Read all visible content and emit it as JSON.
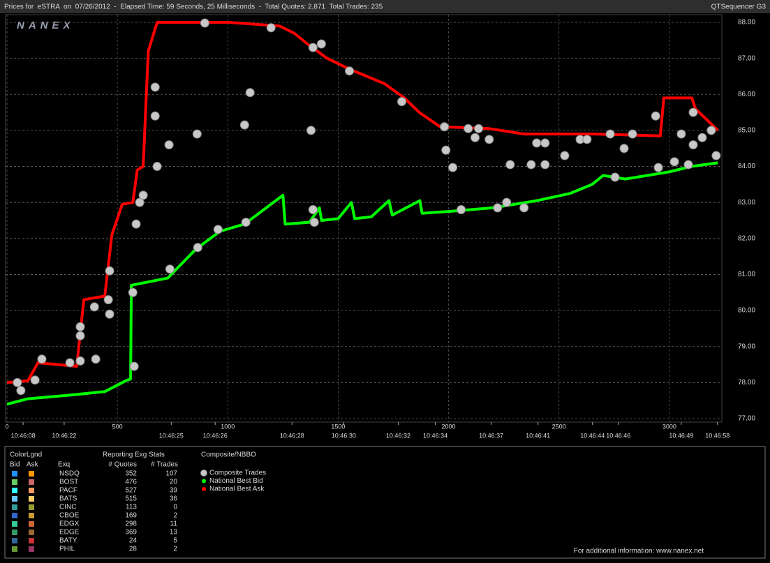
{
  "chart_data": {
    "type": "line",
    "title": "Prices for  eSTRA  on  07/26/2012  -  Elapsed Time: 59 Seconds, 25 Milliseconds  -  Total Quotes: 2,871  Total Trades: 235",
    "subtitle": "QTSequencer G3",
    "logo": "NANEX",
    "xlim": [
      0,
      3225
    ],
    "ylim": [
      77,
      88
    ],
    "grid": true,
    "xticks": [
      0,
      500,
      1000,
      1500,
      2000,
      2500,
      3000
    ],
    "yticks": [
      {
        "value": 77,
        "label": "77.00"
      },
      {
        "value": 78,
        "label": "78.00"
      },
      {
        "value": 79,
        "label": "79.00"
      },
      {
        "value": 80,
        "label": "80.00"
      },
      {
        "value": 81,
        "label": "81.00"
      },
      {
        "value": 82,
        "label": "82.00"
      },
      {
        "value": 83,
        "label": "83.00"
      },
      {
        "value": 84,
        "label": "84.00"
      },
      {
        "value": 85,
        "label": "85.00"
      },
      {
        "value": 86,
        "label": "86.00"
      },
      {
        "value": 87,
        "label": "87.00"
      },
      {
        "value": 88,
        "label": "88.00"
      }
    ],
    "time_ticks": [
      {
        "value": 73,
        "label": "10:46:08"
      },
      {
        "value": 259,
        "label": "10:46:22"
      },
      {
        "value": 744,
        "label": "10:46:25"
      },
      {
        "value": 943,
        "label": "10:46:26"
      },
      {
        "value": 1291,
        "label": "10:46:28"
      },
      {
        "value": 1525,
        "label": "10:46:30"
      },
      {
        "value": 1772,
        "label": "10:46:32"
      },
      {
        "value": 1940,
        "label": "10:46:34"
      },
      {
        "value": 2193,
        "label": "10:46:37"
      },
      {
        "value": 2405,
        "label": "10:46:41"
      },
      {
        "value": 2652,
        "label": "10:46:44"
      },
      {
        "value": 2769,
        "label": "10:46:46"
      },
      {
        "value": 3054,
        "label": "10:46:49"
      },
      {
        "value": 3218,
        "label": "10:46:58"
      }
    ],
    "series": [
      {
        "name": "Composite Trades",
        "type": "scatter",
        "color": "#c8c8c8",
        "x": [
          47,
          63,
          127,
          158,
          285,
          332,
          332,
          332,
          396,
          402,
          459,
          465,
          465,
          570,
          576,
          585,
          601,
          617,
          671,
          671,
          680,
          734,
          738,
          864,
          861,
          896,
          956,
          1076,
          1082,
          1101,
          1196,
          1377,
          1386,
          1386,
          1392,
          1424,
          1551,
          1788,
          1981,
          1988,
          2019,
          2057,
          2089,
          2136,
          2120,
          2184,
          2222,
          2263,
          2279,
          2342,
          2374,
          2399,
          2437,
          2437,
          2526,
          2596,
          2627,
          2732,
          2754,
          2795,
          2833,
          2938,
          2950,
          3023,
          3054,
          3108,
          3108,
          3149,
          3190,
          3212,
          3086
        ],
        "values": [
          78.0,
          77.78,
          78.07,
          78.65,
          78.55,
          78.6,
          79.3,
          79.55,
          80.1,
          78.65,
          80.3,
          79.9,
          81.1,
          80.5,
          78.45,
          82.4,
          83.0,
          83.2,
          86.2,
          85.4,
          84.0,
          84.6,
          81.15,
          81.75,
          84.9,
          87.98,
          82.25,
          85.15,
          82.45,
          86.05,
          87.85,
          85.0,
          87.3,
          82.8,
          82.45,
          87.4,
          86.65,
          85.8,
          85.1,
          84.45,
          83.97,
          82.8,
          85.05,
          85.05,
          84.8,
          84.75,
          82.85,
          83.0,
          84.05,
          82.85,
          84.05,
          84.65,
          84.65,
          84.05,
          84.3,
          84.75,
          84.75,
          84.9,
          83.7,
          84.5,
          84.9,
          85.4,
          83.97,
          84.13,
          84.9,
          84.6,
          85.5,
          84.8,
          85.0,
          84.3,
          84.05
        ]
      },
      {
        "name": "National Best Bid",
        "type": "line",
        "color": "#00ff00",
        "x": [
          0,
          95,
          285,
          443,
          538,
          560,
          563,
          728,
          855,
          965,
          1076,
          1250,
          1260,
          1370,
          1415,
          1425,
          1500,
          1560,
          1575,
          1650,
          1730,
          1745,
          1870,
          1880,
          2000,
          2200,
          2400,
          2550,
          2650,
          2700,
          2800,
          2900,
          3000,
          3100,
          3220
        ],
        "values": [
          77.4,
          77.55,
          77.65,
          77.75,
          78.05,
          78.1,
          80.7,
          80.9,
          81.7,
          82.2,
          82.4,
          83.2,
          82.4,
          82.45,
          82.85,
          82.5,
          82.55,
          83.0,
          82.55,
          82.6,
          83.05,
          82.65,
          83.05,
          82.7,
          82.75,
          82.85,
          83.05,
          83.25,
          83.5,
          83.75,
          83.65,
          83.75,
          83.85,
          84.0,
          84.1
        ]
      },
      {
        "name": "National Best Ask",
        "type": "line",
        "color": "#ff0000",
        "x": [
          0,
          95,
          140,
          316,
          348,
          443,
          475,
          522,
          570,
          590,
          617,
          640,
          680,
          1000,
          1234,
          1300,
          1361,
          1450,
          1551,
          1709,
          1800,
          1867,
          1962,
          2184,
          2342,
          2659,
          2959,
          2975,
          3102,
          3118,
          3220
        ],
        "values": [
          78.0,
          78.05,
          78.55,
          78.45,
          80.3,
          80.4,
          82.1,
          82.95,
          83.0,
          83.9,
          84.0,
          87.2,
          88.0,
          88.0,
          87.9,
          87.7,
          87.4,
          87.0,
          86.7,
          86.3,
          85.9,
          85.5,
          85.1,
          85.05,
          84.9,
          84.9,
          84.85,
          85.9,
          85.9,
          85.6,
          85.0
        ]
      }
    ]
  },
  "legend_panel": {
    "title": "ColorLgnd",
    "bid_header": "Bid",
    "ask_header": "Ask",
    "exchange_header": "Exq",
    "stats_title": "Reporting Exg Stats",
    "quotes_header": "# Quotes",
    "trades_header": "# Trades",
    "nbbo_title": "Composite/NBBO",
    "rows": [
      {
        "exchange": "NSDQ",
        "bid_color": "#1e90ff",
        "ask_color": "#ff9900",
        "quotes": 352,
        "trades": 107
      },
      {
        "exchange": "BOST",
        "bid_color": "#66cc66",
        "ask_color": "#cc6666",
        "quotes": 476,
        "trades": 20
      },
      {
        "exchange": "PACF",
        "bid_color": "#33ffff",
        "ask_color": "#ff9966",
        "quotes": 527,
        "trades": 39
      },
      {
        "exchange": "BATS",
        "bid_color": "#66ccff",
        "ask_color": "#ffcc66",
        "quotes": 515,
        "trades": 36
      },
      {
        "exchange": "CINC",
        "bid_color": "#339999",
        "ask_color": "#999933",
        "quotes": 113,
        "trades": 0
      },
      {
        "exchange": "CBOE",
        "bid_color": "#3366cc",
        "ask_color": "#cc9933",
        "quotes": 169,
        "trades": 2
      },
      {
        "exchange": "EDGX",
        "bid_color": "#33cc99",
        "ask_color": "#cc6633",
        "quotes": 298,
        "trades": 11
      },
      {
        "exchange": "EDGE",
        "bid_color": "#339966",
        "ask_color": "#996633",
        "quotes": 369,
        "trades": 13
      },
      {
        "exchange": "BATY",
        "bid_color": "#336699",
        "ask_color": "#cc3333",
        "quotes": 24,
        "trades": 5
      },
      {
        "exchange": "PHIL",
        "bid_color": "#669933",
        "ask_color": "#993366",
        "quotes": 28,
        "trades": 2
      }
    ],
    "footer": "For additional information: www.nanex.net"
  }
}
